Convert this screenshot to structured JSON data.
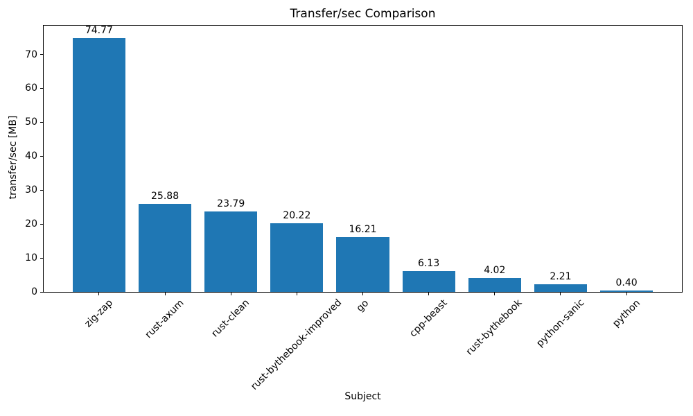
{
  "chart_data": {
    "type": "bar",
    "title": "Transfer/sec Comparison",
    "xlabel": "Subject",
    "ylabel": "transfer/sec [MB]",
    "categories": [
      "zig-zap",
      "rust-axum",
      "rust-clean",
      "rust-bythebook-improved",
      "go",
      "cpp-beast",
      "rust-bythebook",
      "python-sanic",
      "python"
    ],
    "values": [
      74.77,
      25.88,
      23.79,
      20.22,
      16.21,
      6.13,
      4.02,
      2.21,
      0.4
    ],
    "value_labels": [
      "74.77",
      "25.88",
      "23.79",
      "20.22",
      "16.21",
      "6.13",
      "4.02",
      "2.21",
      "0.40"
    ],
    "yticks": [
      0,
      10,
      20,
      30,
      40,
      50,
      60,
      70
    ],
    "ylim": [
      0,
      78.5
    ],
    "bar_color": "#1f77b4",
    "axis_color": "#000000",
    "background_color": "#ffffff",
    "grid": false,
    "legend": null,
    "x_tick_rotation_deg": 45
  }
}
